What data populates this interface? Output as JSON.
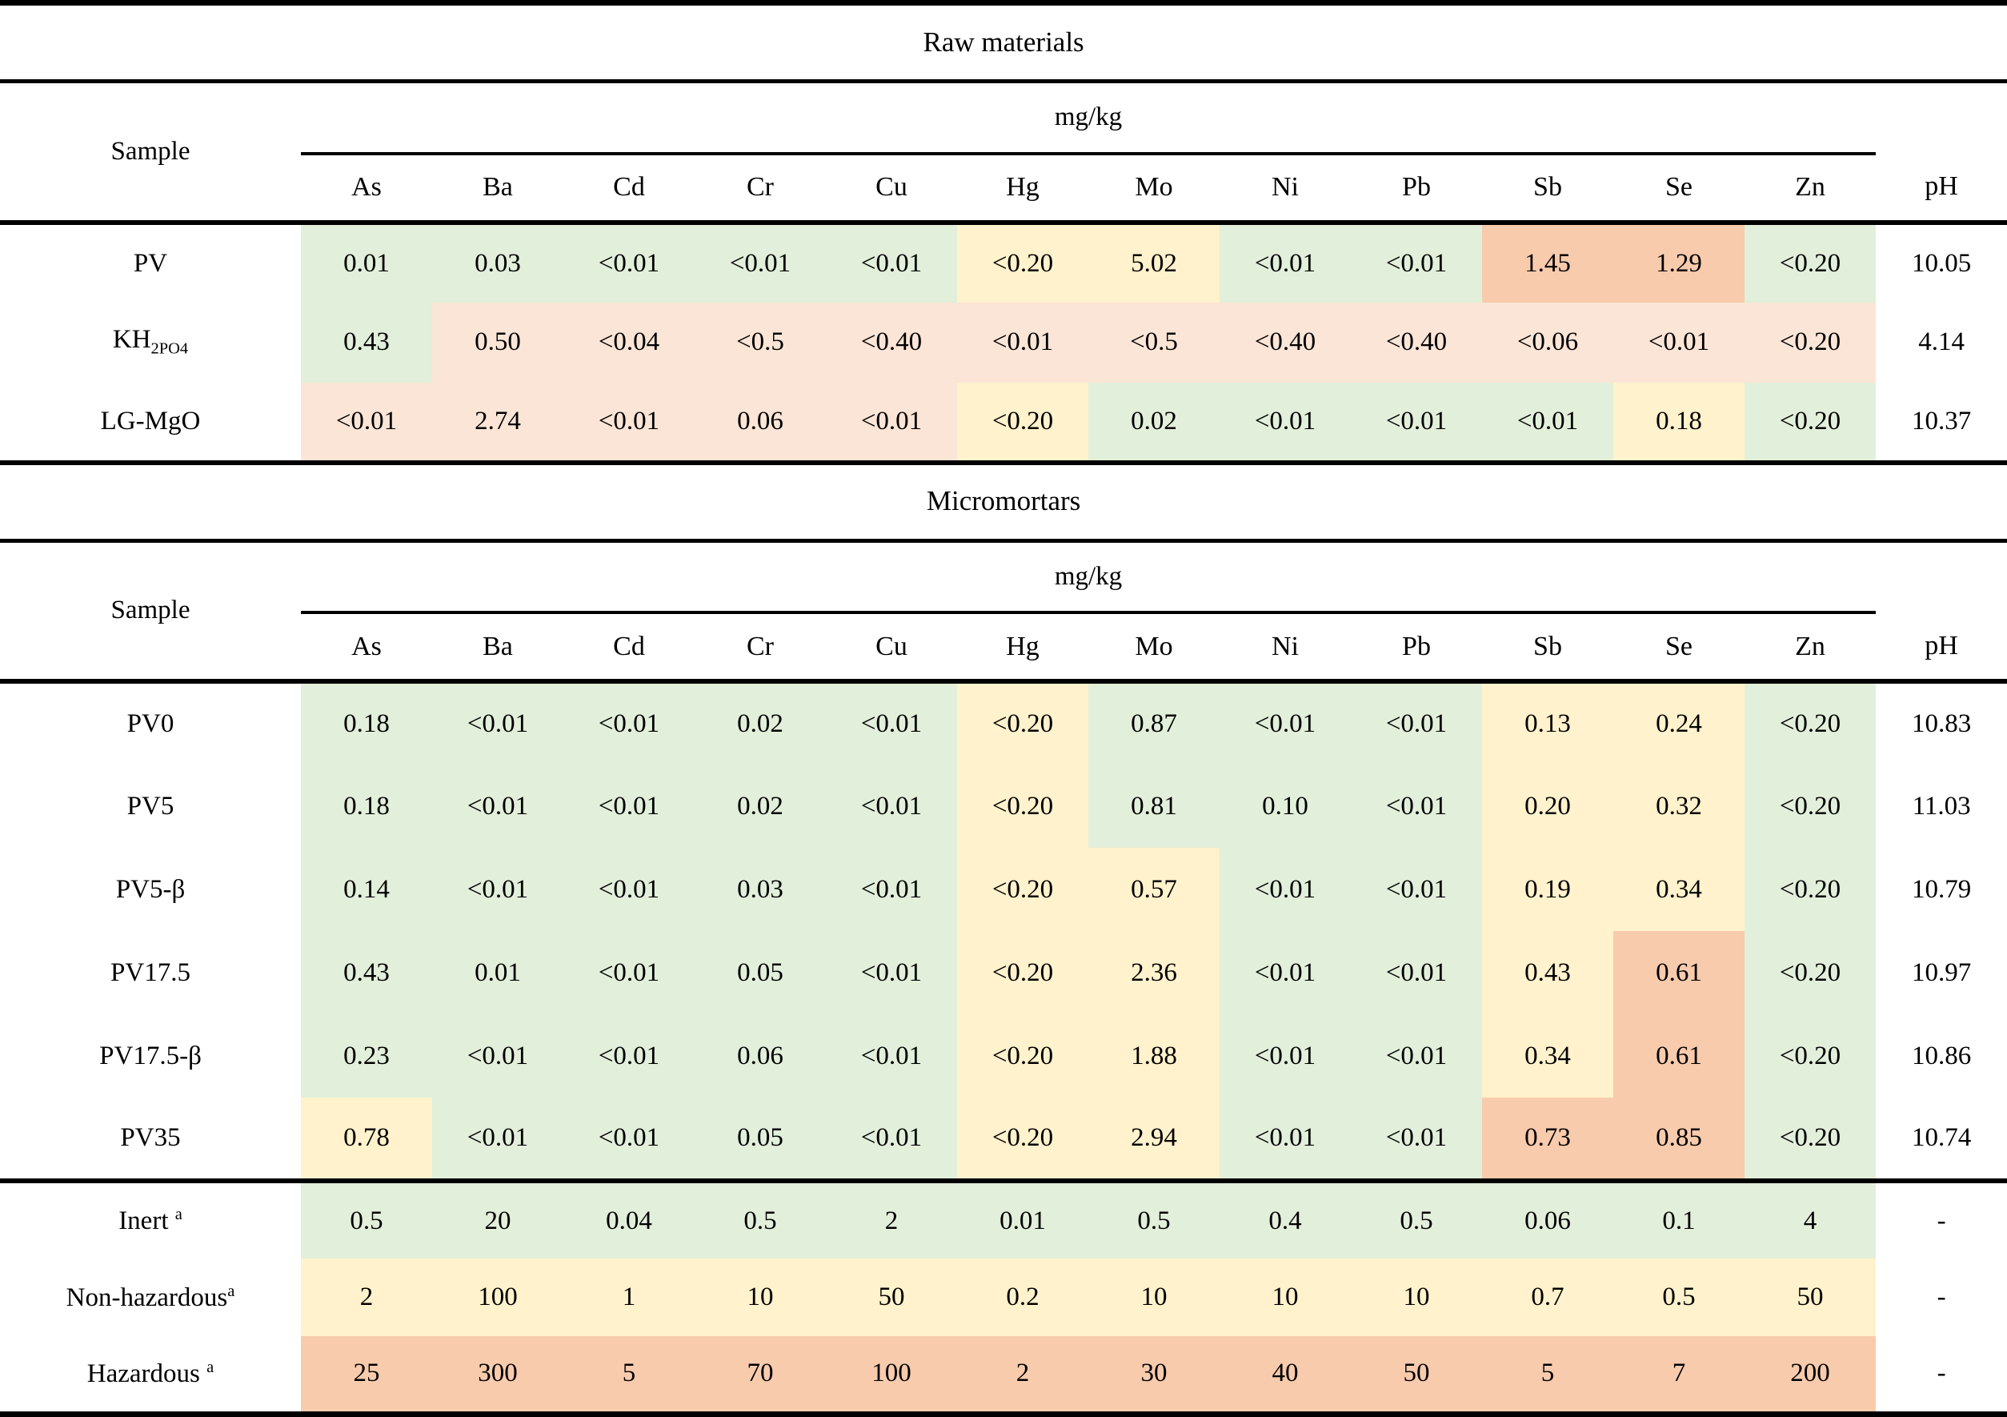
{
  "palette": {
    "green": "#E2EFDA",
    "yellow": "#FFF2CC",
    "orange": "#F8CBAD",
    "peach": "#FBE5D6",
    "white": "#FFFFFF"
  },
  "labels": {
    "sample": "Sample",
    "unit": "mg/kg",
    "ph": "pH"
  },
  "columns": [
    "As",
    "Ba",
    "Cd",
    "Cr",
    "Cu",
    "Hg",
    "Mo",
    "Ni",
    "Pb",
    "Sb",
    "Se",
    "Zn"
  ],
  "sections": [
    {
      "title": "Raw materials",
      "rows": [
        {
          "sample": "PV",
          "values": [
            "0.01",
            "0.03",
            "<0.01",
            "<0.01",
            "<0.01",
            "<0.20",
            "5.02",
            "<0.01",
            "<0.01",
            "1.45",
            "1.29",
            "<0.20"
          ],
          "colors": [
            "green",
            "green",
            "green",
            "green",
            "green",
            "yellow",
            "yellow",
            "green",
            "green",
            "orange",
            "orange",
            "green"
          ],
          "ph": "10.05"
        },
        {
          "sample": "KH_2PO_4",
          "values": [
            "0.43",
            "0.50",
            "<0.04",
            "<0.5",
            "<0.40",
            "<0.01",
            "<0.5",
            "<0.40",
            "<0.40",
            "<0.06",
            "<0.01",
            "<0.20"
          ],
          "colors": [
            "green",
            "peach",
            "peach",
            "peach",
            "peach",
            "peach",
            "peach",
            "peach",
            "peach",
            "peach",
            "peach",
            "peach"
          ],
          "ph": "4.14"
        },
        {
          "sample": "LG-MgO",
          "values": [
            "<0.01",
            "2.74",
            "<0.01",
            "0.06",
            "<0.01",
            "<0.20",
            "0.02",
            "<0.01",
            "<0.01",
            "<0.01",
            "0.18",
            "<0.20"
          ],
          "colors": [
            "peach",
            "peach",
            "peach",
            "peach",
            "peach",
            "yellow",
            "green",
            "green",
            "green",
            "green",
            "yellow",
            "green"
          ],
          "ph": "10.37"
        }
      ],
      "limit_rows": []
    },
    {
      "title": "Micromortars",
      "rows": [
        {
          "sample": "PV0",
          "values": [
            "0.18",
            "<0.01",
            "<0.01",
            "0.02",
            "<0.01",
            "<0.20",
            "0.87",
            "<0.01",
            "<0.01",
            "0.13",
            "0.24",
            "<0.20"
          ],
          "colors": [
            "green",
            "green",
            "green",
            "green",
            "green",
            "yellow",
            "green",
            "green",
            "green",
            "yellow",
            "yellow",
            "green"
          ],
          "ph": "10.83"
        },
        {
          "sample": "PV5",
          "values": [
            "0.18",
            "<0.01",
            "<0.01",
            "0.02",
            "<0.01",
            "<0.20",
            "0.81",
            "0.10",
            "<0.01",
            "0.20",
            "0.32",
            "<0.20"
          ],
          "colors": [
            "green",
            "green",
            "green",
            "green",
            "green",
            "yellow",
            "green",
            "green",
            "green",
            "yellow",
            "yellow",
            "green"
          ],
          "ph": "11.03"
        },
        {
          "sample": "PV5-β",
          "values": [
            "0.14",
            "<0.01",
            "<0.01",
            "0.03",
            "<0.01",
            "<0.20",
            "0.57",
            "<0.01",
            "<0.01",
            "0.19",
            "0.34",
            "<0.20"
          ],
          "colors": [
            "green",
            "green",
            "green",
            "green",
            "green",
            "yellow",
            "yellow",
            "green",
            "green",
            "yellow",
            "yellow",
            "green"
          ],
          "ph": "10.79"
        },
        {
          "sample": "PV17.5",
          "values": [
            "0.43",
            "0.01",
            "<0.01",
            "0.05",
            "<0.01",
            "<0.20",
            "2.36",
            "<0.01",
            "<0.01",
            "0.43",
            "0.61",
            "<0.20"
          ],
          "colors": [
            "green",
            "green",
            "green",
            "green",
            "green",
            "yellow",
            "yellow",
            "green",
            "green",
            "yellow",
            "orange",
            "green"
          ],
          "ph": "10.97"
        },
        {
          "sample": "PV17.5-β",
          "values": [
            "0.23",
            "<0.01",
            "<0.01",
            "0.06",
            "<0.01",
            "<0.20",
            "1.88",
            "<0.01",
            "<0.01",
            "0.34",
            "0.61",
            "<0.20"
          ],
          "colors": [
            "green",
            "green",
            "green",
            "green",
            "green",
            "yellow",
            "yellow",
            "green",
            "green",
            "yellow",
            "orange",
            "green"
          ],
          "ph": "10.86"
        },
        {
          "sample": "PV35",
          "values": [
            "0.78",
            "<0.01",
            "<0.01",
            "0.05",
            "<0.01",
            "<0.20",
            "2.94",
            "<0.01",
            "<0.01",
            "0.73",
            "0.85",
            "<0.20"
          ],
          "colors": [
            "yellow",
            "green",
            "green",
            "green",
            "green",
            "yellow",
            "yellow",
            "green",
            "green",
            "orange",
            "orange",
            "green"
          ],
          "ph": "10.74"
        }
      ],
      "limit_rows": [
        {
          "sample": "Inert ^a",
          "values": [
            "0.5",
            "20",
            "0.04",
            "0.5",
            "2",
            "0.01",
            "0.5",
            "0.4",
            "0.5",
            "0.06",
            "0.1",
            "4"
          ],
          "color": "green",
          "ph": "-"
        },
        {
          "sample": "Non-hazardous^a",
          "values": [
            "2",
            "100",
            "1",
            "10",
            "50",
            "0.2",
            "10",
            "10",
            "10",
            "0.7",
            "0.5",
            "50"
          ],
          "color": "yellow",
          "ph": "-"
        },
        {
          "sample": "Hazardous ^a",
          "values": [
            "25",
            "300",
            "5",
            "70",
            "100",
            "2",
            "30",
            "40",
            "50",
            "5",
            "7",
            "200"
          ],
          "color": "orange",
          "ph": "-"
        }
      ]
    }
  ]
}
